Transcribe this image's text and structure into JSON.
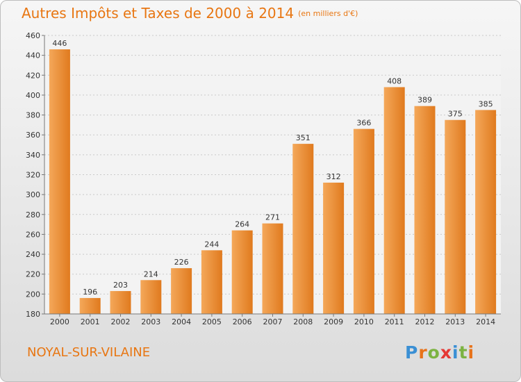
{
  "title": "Autres Impôts et Taxes de 2000 à 2014",
  "subtitle": "(en milliers d'€)",
  "commune": "NOYAL-SUR-VILAINE",
  "logo": {
    "text": "Proxiti",
    "letter_colors": [
      "#3a8fd4",
      "#e8731a",
      "#7cb342",
      "#e53935",
      "#3a8fd4",
      "#7cb342",
      "#e8731a"
    ]
  },
  "colors": {
    "accent": "#e87612",
    "bar_light": "#f4a85a",
    "bar_dark": "#e07a1e"
  },
  "chart_data": {
    "type": "bar",
    "categories": [
      "2000",
      "2001",
      "2002",
      "2003",
      "2004",
      "2005",
      "2006",
      "2007",
      "2008",
      "2009",
      "2010",
      "2011",
      "2012",
      "2013",
      "2014"
    ],
    "values": [
      446,
      196,
      203,
      214,
      226,
      244,
      264,
      271,
      351,
      312,
      366,
      408,
      389,
      375,
      385
    ],
    "ylim": [
      180,
      460
    ],
    "yticks": [
      180,
      200,
      220,
      240,
      260,
      280,
      300,
      320,
      340,
      360,
      380,
      400,
      420,
      440,
      460
    ],
    "grid": true,
    "data_labels": true
  }
}
